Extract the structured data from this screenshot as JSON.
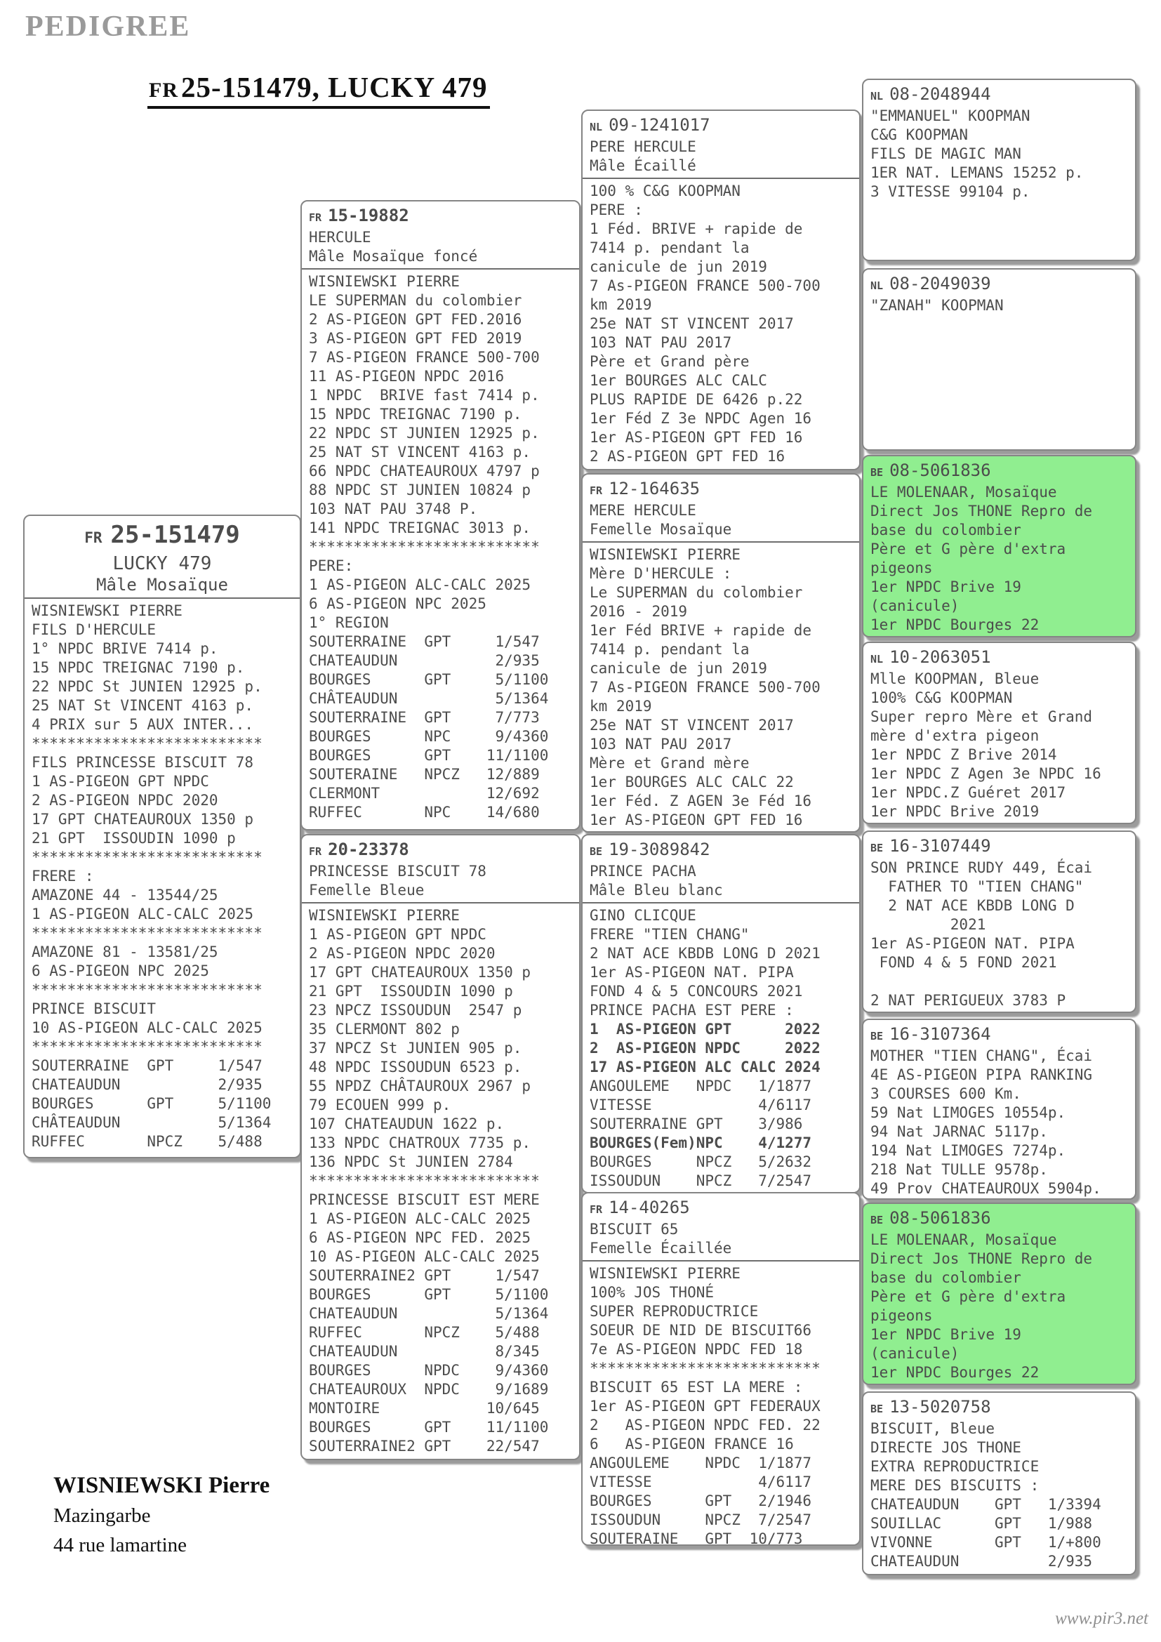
{
  "page": {
    "header_label": "PEDIGREE",
    "title_prefix": "FR",
    "title": "25-151479, LUCKY 479",
    "footer": {
      "owner": "WISNIEWSKI Pierre",
      "line2": "Mazingarbe",
      "line3": "44 rue lamartine"
    },
    "watermark": "www.pir3.net"
  },
  "colors": {
    "highlight_green": "#90ee90",
    "box_border": "#858585",
    "box_text": "#4c4c4c",
    "shadow": "#9b9b9b",
    "title_color": "#111111",
    "muted_header": "#9a9a9a",
    "watermark_gray": "#8f8f8f"
  },
  "boxes": [
    {
      "country": "FR",
      "ring": "25-151479",
      "name": "LUCKY 479",
      "desc": "Mâle Mosaïque",
      "lines": [
        "WISNIEWSKI PIERRE",
        "FILS D'HERCULE",
        "1° NPDC BRIVE 7414 p.",
        "15 NPDC TREIGNAC 7190 p.",
        "22 NPDC St JUNIEN 12925 p.",
        "25 NAT St VINCENT 4163 p.",
        "4 PRIX sur 5 AUX INTER...",
        "**************************",
        "FILS PRINCESSE BISCUIT 78",
        "1 AS-PIGEON GPT NPDC",
        "2 AS-PIGEON NPDC 2020",
        "17 GPT CHATEAUROUX 1350 p",
        "21 GPT  ISSOUDIN 1090 p",
        "**************************",
        "FRERE :",
        "AMAZONE 44 - 13544/25",
        "1 AS-PIGEON ALC-CALC 2025",
        "**************************",
        "AMAZONE 81 - 13581/25",
        "6 AS-PIGEON NPC 2025",
        "**************************",
        "PRINCE BISCUIT",
        "10 AS-PIGEON ALC-CALC 2025",
        "**************************",
        "SOUTERRAINE  GPT     1/547",
        "CHATEAUDUN           2/935",
        "BOURGES      GPT     5/1100",
        "CHÂTEAUDUN           5/1364",
        "RUFFEC       NPCZ    5/488"
      ]
    },
    {
      "country": "FR",
      "ring": "15-19882",
      "name": "HERCULE",
      "desc": "Mâle Mosaïque foncé",
      "lines": [
        "WISNIEWSKI PIERRE",
        "LE SUPERMAN du colombier",
        "2 AS-PIGEON GPT FED.2016",
        "3 AS-PIGEON GPT FED 2019",
        "7 AS-PIGEON FRANCE 500-700",
        "11 AS-PIGEON NPDC 2016",
        "1 NPDC  BRIVE fast 7414 p.",
        "15 NPDC TREIGNAC 7190 p.",
        "22 NPDC ST JUNIEN 12925 p.",
        "25 NAT ST VINCENT 4163 p.",
        "66 NPDC CHATEAUROUX 4797 p",
        "88 NPDC ST JUNIEN 10824 p",
        "103 NAT PAU 3748 P.",
        "141 NPDC TREIGNAC 3013 p.",
        "**************************",
        "PERE:",
        "1 AS-PIGEON ALC-CALC 2025",
        "6 AS-PIGEON NPC 2025",
        "1° REGION",
        "SOUTERRAINE  GPT     1/547",
        "CHATEAUDUN           2/935",
        "BOURGES      GPT     5/1100",
        "CHÂTEAUDUN           5/1364",
        "SOUTERRAINE  GPT     7/773",
        "BOURGES      NPC     9/4360",
        "BOURGES      GPT    11/1100",
        "SOUTERAINE   NPCZ   12/889",
        "CLERMONT            12/692",
        "RUFFEC       NPC    14/680"
      ]
    },
    {
      "country": "FR",
      "ring": "20-23378",
      "name": "PRINCESSE BISCUIT 78",
      "desc": "Femelle Bleue",
      "lines": [
        "WISNIEWSKI PIERRE",
        "1 AS-PIGEON GPT NPDC",
        "2 AS-PIGEON NPDC 2020",
        "17 GPT CHATEAUROUX 1350 p",
        "21 GPT  ISSOUDIN 1090 p",
        "23 NPCZ ISSOUDUN  2547 p",
        "35 CLERMONT 802 p",
        "37 NPCZ St JUNIEN 905 p.",
        "48 NPDC ISSOUDUN 6523 p.",
        "55 NPDZ CHÂTAUROUX 2967 p",
        "79 ECOUEN 999 p.",
        "107 CHATEAUDUN 1622 p.",
        "133 NPDC CHATROUX 7735 p.",
        "136 NPDC St JUNIEN 2784",
        "**************************",
        "PRINCESSE BISCUIT EST MERE",
        "1 AS-PIGEON ALC-CALC 2025",
        "6 AS-PIGEON NPC FED. 2025",
        "10 AS-PIGEON ALC-CALC 2025",
        "SOUTERRAINE2 GPT     1/547",
        "BOURGES      GPT     5/1100",
        "CHATEAUDUN           5/1364",
        "RUFFEC       NPCZ    5/488",
        "CHATEAUDUN           8/345",
        "BOURGES      NPDC    9/4360",
        "CHATEAUROUX  NPDC    9/1689",
        "MONTOIRE            10/645",
        "BOURGES      GPT    11/1100",
        "SOUTERRAINE2 GPT    22/547"
      ]
    },
    {
      "country": "NL",
      "ring": "09-1241017",
      "name": "PERE HERCULE",
      "desc": "Mâle Écaillé",
      "lines": [
        "100 % C&G KOOPMAN",
        "PERE :",
        "1 Féd. BRIVE + rapide de",
        "7414 p. pendant la",
        "canicule de jun 2019",
        "7 As-PIGEON FRANCE 500-700",
        "km 2019",
        "25e NAT ST VINCENT 2017",
        "103 NAT PAU 2017",
        "Père et Grand père",
        "1er BOURGES ALC CALC",
        "PLUS RAPIDE DE 6426 p.22",
        "1er Féd Z 3e NPDC Agen 16",
        "1er AS-PIGEON GPT FED 16",
        "2 AS-PIGEON GPT FED 16"
      ]
    },
    {
      "country": "FR",
      "ring": "12-164635",
      "name": "MERE HERCULE",
      "desc": "Femelle Mosaïque",
      "lines": [
        "WISNIEWSKI PIERRE",
        "Mère D'HERCULE :",
        "Le SUPERMAN du colombier",
        "2016 - 2019",
        "1er Féd BRIVE + rapide de",
        "7414 p. pendant la",
        "canicule de jun 2019",
        "7 As-PIGEON FRANCE 500-700",
        "km 2019",
        "25e NAT ST VINCENT 2017",
        "103 NAT PAU 2017",
        "Mère et Grand mère",
        "1er BOURGES ALC CALC 22",
        "1er Féd. Z AGEN 3e Féd 16",
        "1er AS-PIGEON GPT FED 16"
      ]
    },
    {
      "country": "BE",
      "ring": "19-3089842",
      "name": "PRINCE PACHA",
      "desc": "Mâle Bleu blanc",
      "lines": [
        "GINO CLICQUE",
        "FRERE \"TIEN CHANG\"",
        "2 NAT ACE KBDB LONG D 2021",
        "1er AS-PIGEON NAT. PIPA",
        "FOND 4 & 5 CONCOURS 2021",
        "PRINCE PACHA EST PERE :",
        {
          "text": "1  AS-PIGEON GPT      2022",
          "bold": true
        },
        {
          "text": "2  AS-PIGEON NPDC     2022",
          "bold": true
        },
        {
          "text": "17 AS-PIGEON ALC CALC 2024",
          "bold": true
        },
        "ANGOULEME   NPDC   1/1877",
        "VITESSE            4/6117",
        "SOUTERRAINE GPT    3/986",
        {
          "text": "BOURGES(Fem)NPC    4/1277",
          "bold": true
        },
        "BOURGES     NPCZ   5/2632",
        "ISSOUDUN    NPCZ   7/2547"
      ]
    },
    {
      "country": "FR",
      "ring": "14-40265",
      "name": "BISCUIT 65",
      "desc": "Femelle Écaillée",
      "lines": [
        "WISNIEWSKI PIERRE",
        "100% JOS THONÉ",
        "SUPER REPRODUCTRICE",
        "SOEUR DE NID DE BISCUIT66",
        "7e AS-PIGEON NPDC FED 18",
        "**************************",
        "BISCUIT 65 EST LA MERE :",
        "1er AS-PIGEON GPT FEDERAUX",
        "2   AS-PIGEON NPDC FED. 22",
        "6   AS-PIGEON FRANCE 16",
        "ANGOULEME    NPDC  1/1877",
        "VITESSE            4/6117",
        "BOURGES      GPT   2/1946",
        "ISSOUDUN     NPCZ  7/2547",
        "SOUTERAINE   GPT  10/773"
      ]
    },
    {
      "country": "NL",
      "ring": "08-2048944",
      "lines": [
        "\"EMMANUEL\" KOOPMAN",
        "C&G KOOPMAN",
        "FILS DE MAGIC MAN",
        "1ER NAT. LEMANS 15252 p.",
        "3 VITESSE 99104 p."
      ]
    },
    {
      "country": "NL",
      "ring": "08-2049039",
      "lines": [
        "\"ZANAH\" KOOPMAN"
      ]
    },
    {
      "country": "BE",
      "ring": "08-5061836",
      "highlight": true,
      "lines": [
        "LE MOLENAAR, Mosaïque",
        "Direct Jos THONE Repro de",
        "base du colombier",
        "Père et G père d'extra",
        "pigeons",
        "1er NPDC Brive 19",
        "(canicule)",
        "1er NPDC Bourges 22"
      ]
    },
    {
      "country": "NL",
      "ring": "10-2063051",
      "lines": [
        "Mlle KOOPMAN, Bleue",
        "100% C&G KOOPMAN",
        "Super repro Mère et Grand",
        "mère d'extra pigeon",
        "1er NPDC Z Brive 2014",
        "1er NPDC Z Agen 3e NPDC 16",
        "1er NPDC.Z Guéret 2017",
        "1er NPDC Brive 2019"
      ]
    },
    {
      "country": "BE",
      "ring": "16-3107449",
      "lines": [
        "SON PRINCE RUDY 449, Écai",
        "  FATHER TO \"TIEN CHANG\"",
        "  2 NAT ACE KBDB LONG D",
        "         2021",
        "1er AS-PIGEON NAT. PIPA",
        " FOND 4 & 5 FOND 2021",
        "",
        "2 NAT PERIGUEUX 3783 P"
      ]
    },
    {
      "country": "BE",
      "ring": "16-3107364",
      "lines": [
        "MOTHER \"TIEN CHANG\", Écai",
        "4E AS-PIGEON PIPA RANKING",
        "3 COURSES 600 Km.",
        "59 Nat LIMOGES 10554p.",
        "94 Nat JARNAC 5117p.",
        "194 Nat LIMOGES 7274p.",
        "218 Nat TULLE 9578p.",
        "49 Prov CHATEAUROUX 5904p."
      ]
    },
    {
      "country": "BE",
      "ring": "08-5061836",
      "highlight": true,
      "lines": [
        "LE MOLENAAR, Mosaïque",
        "Direct Jos THONE Repro de",
        "base du colombier",
        "Père et G père d'extra",
        "pigeons",
        "1er NPDC Brive 19",
        "(canicule)",
        "1er NPDC Bourges 22"
      ]
    },
    {
      "country": "BE",
      "ring": "13-5020758",
      "lines": [
        "BISCUIT, Bleue",
        "DIRECTE JOS THONE",
        "EXTRA REPRODUCTRICE",
        "MERE DES BISCUITS :",
        "CHATEAUDUN    GPT   1/3394",
        "SOUILLAC      GPT   1/988",
        "VIVONNE       GPT   1/+800",
        "CHATEAUDUN          2/935"
      ]
    }
  ]
}
